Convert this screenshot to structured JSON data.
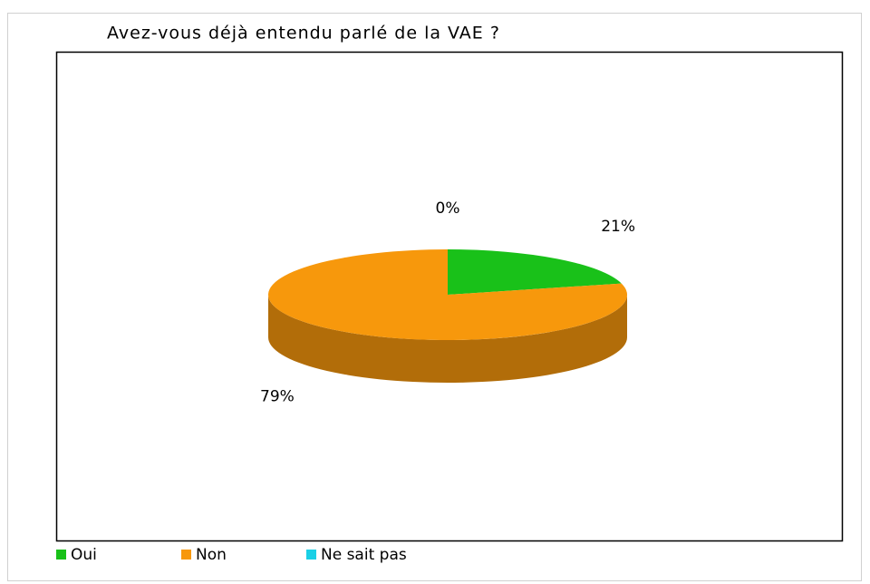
{
  "chart_data": {
    "type": "pie",
    "title": "Avez-vous déjà entendu parlé de la VAE ?",
    "categories": [
      "Oui",
      "Non",
      "Ne sait pas"
    ],
    "values": [
      21,
      79,
      0
    ],
    "value_labels": [
      "21%",
      "79%",
      "0%"
    ],
    "colors": [
      "#19c119",
      "#f7980c",
      "#1ad0e6"
    ],
    "three_d": true
  }
}
